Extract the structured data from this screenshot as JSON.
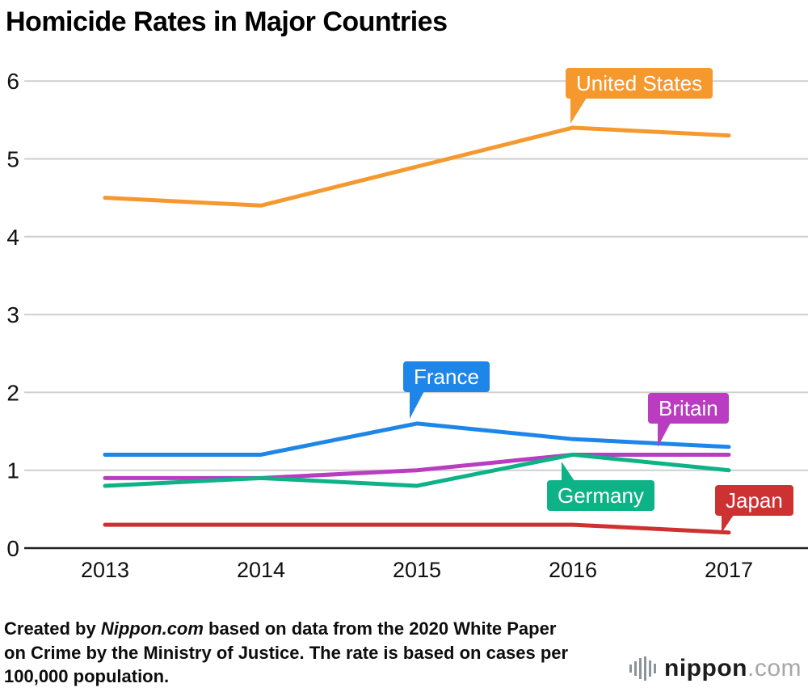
{
  "chart_data": {
    "type": "line",
    "title": "Homicide Rates in Major Countries",
    "categories": [
      "2013",
      "2014",
      "2015",
      "2016",
      "2017"
    ],
    "series": [
      {
        "name": "United States",
        "color": "#F5992E",
        "values": [
          4.5,
          4.4,
          4.9,
          5.4,
          5.3
        ]
      },
      {
        "name": "France",
        "color": "#1E86E8",
        "values": [
          1.2,
          1.2,
          1.6,
          1.4,
          1.3
        ]
      },
      {
        "name": "Britain",
        "color": "#B93CC1",
        "values": [
          0.9,
          0.9,
          1.0,
          1.2,
          1.2
        ]
      },
      {
        "name": "Germany",
        "color": "#0DB287",
        "values": [
          0.8,
          0.9,
          0.8,
          1.2,
          1.0
        ]
      },
      {
        "name": "Japan",
        "color": "#CE3131",
        "values": [
          0.3,
          0.3,
          0.3,
          0.3,
          0.2
        ]
      }
    ],
    "ylim": [
      0,
      6
    ],
    "yticks": [
      0,
      1,
      2,
      3,
      4,
      5,
      6
    ],
    "grid": true,
    "legend": "inline-callouts",
    "grid_color": "#CFCFCF",
    "baseline_color": "#222222"
  },
  "footer": {
    "line1_prefix": "Created by ",
    "line1_brand": "Nippon.com",
    "line1_rest": " based on data from the 2020 White Paper",
    "line2": "on Crime by the Ministry of Justice. The rate is based on cases per",
    "line3": "100,000 population."
  },
  "logo": {
    "brand": "nippon",
    "tld": ".com"
  }
}
